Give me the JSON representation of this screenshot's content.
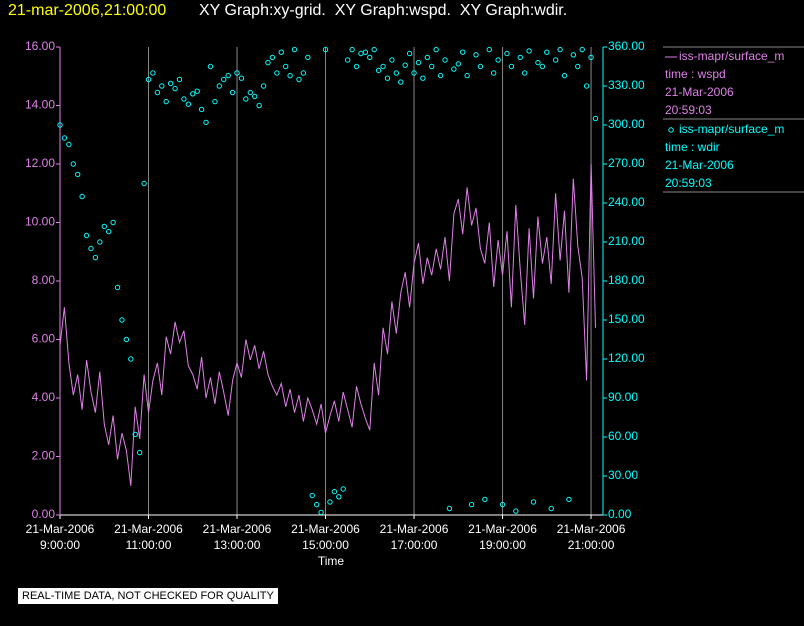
{
  "chart_data": {
    "type": "line-scatter",
    "title": "21-mar-2006,21:00:00",
    "subtitle": "XY Graph:xy-grid.  XY Graph:wspd.  XY Graph:wdir.",
    "xlabel": "Time",
    "note": "REAL-TIME DATA, NOT CHECKED FOR QUALITY",
    "xlim": [
      9,
      21.27
    ],
    "xticks": [
      {
        "value": 9,
        "label": "21-Mar-2006 9:00:00"
      },
      {
        "value": 11,
        "label": "21-Mar-2006 11:00:00"
      },
      {
        "value": 13,
        "label": "21-Mar-2006 13:00:00"
      },
      {
        "value": 15,
        "label": "21-Mar-2006 15:00:00"
      },
      {
        "value": 17,
        "label": "21-Mar-2006 17:00:00"
      },
      {
        "value": 19,
        "label": "21-Mar-2006 19:00:00"
      },
      {
        "value": 21,
        "label": "21-Mar-2006 21:00:00"
      }
    ],
    "ylim": [
      0,
      16
    ],
    "yticks": [
      {
        "value": 0,
        "label": "0.00"
      },
      {
        "value": 2,
        "label": "2.00"
      },
      {
        "value": 4,
        "label": "4.00"
      },
      {
        "value": 6,
        "label": "6.00"
      },
      {
        "value": 8,
        "label": "8.00"
      },
      {
        "value": 10,
        "label": "10.00"
      },
      {
        "value": 12,
        "label": "12.00"
      },
      {
        "value": 14,
        "label": "14.00"
      },
      {
        "value": 16,
        "label": "16.00"
      }
    ],
    "y2lim": [
      0,
      360
    ],
    "y2ticks": [
      {
        "value": 0,
        "label": "0.00"
      },
      {
        "value": 30,
        "label": "30.00"
      },
      {
        "value": 60,
        "label": "60.00"
      },
      {
        "value": 90,
        "label": "90.00"
      },
      {
        "value": 120,
        "label": "120.00"
      },
      {
        "value": 150,
        "label": "150.00"
      },
      {
        "value": 180,
        "label": "180.00"
      },
      {
        "value": 210,
        "label": "210.00"
      },
      {
        "value": 240,
        "label": "240.00"
      },
      {
        "value": 270,
        "label": "270.00"
      },
      {
        "value": 300,
        "label": "300.00"
      },
      {
        "value": 330,
        "label": "330.00"
      },
      {
        "value": 360,
        "label": "360.00"
      }
    ],
    "xgrid": true,
    "x": [
      9,
      9.1,
      9.2,
      9.3,
      9.4,
      9.5,
      9.6,
      9.7,
      9.8,
      9.9,
      10,
      10.1,
      10.2,
      10.3,
      10.4,
      10.5,
      10.6,
      10.7,
      10.8,
      10.9,
      11,
      11.1,
      11.2,
      11.3,
      11.4,
      11.5,
      11.6,
      11.7,
      11.8,
      11.9,
      12,
      12.1,
      12.2,
      12.3,
      12.4,
      12.5,
      12.6,
      12.7,
      12.8,
      12.9,
      13,
      13.1,
      13.2,
      13.3,
      13.4,
      13.5,
      13.6,
      13.7,
      13.8,
      13.9,
      14,
      14.1,
      14.2,
      14.3,
      14.4,
      14.5,
      14.6,
      14.7,
      14.8,
      14.9,
      15,
      15.1,
      15.2,
      15.3,
      15.4,
      15.5,
      15.6,
      15.7,
      15.8,
      15.9,
      16,
      16.1,
      16.2,
      16.3,
      16.4,
      16.5,
      16.6,
      16.7,
      16.8,
      16.9,
      17,
      17.1,
      17.2,
      17.3,
      17.4,
      17.5,
      17.6,
      17.7,
      17.8,
      17.9,
      18,
      18.1,
      18.2,
      18.3,
      18.4,
      18.5,
      18.6,
      18.7,
      18.8,
      18.9,
      19,
      19.1,
      19.2,
      19.3,
      19.4,
      19.5,
      19.6,
      19.7,
      19.8,
      19.9,
      20,
      20.1,
      20.2,
      20.3,
      20.4,
      20.5,
      20.6,
      20.7,
      20.8,
      20.9,
      21,
      21.1
    ],
    "series": [
      {
        "name": "iss-mapr/surface_m",
        "label": "time : wspd",
        "date": "21-Mar-2006",
        "time": "20:59:03",
        "color": "#e080e8",
        "style": "line",
        "axis": "y",
        "values": [
          5.8,
          7.1,
          5.2,
          4.1,
          4.8,
          3.6,
          5.3,
          4.2,
          3.5,
          4.9,
          3.1,
          2.4,
          3.4,
          1.9,
          2.8,
          2.2,
          1.0,
          3.7,
          2.6,
          4.8,
          3.5,
          4.6,
          5.2,
          4.1,
          6.1,
          5.5,
          6.6,
          5.9,
          6.3,
          5.1,
          4.8,
          4.3,
          5.4,
          4.0,
          4.7,
          3.8,
          4.9,
          4.2,
          3.4,
          4.6,
          5.2,
          4.7,
          6.0,
          5.3,
          5.8,
          5.0,
          5.6,
          4.8,
          4.4,
          4.1,
          4.5,
          3.7,
          4.3,
          3.5,
          4.1,
          3.2,
          4.0,
          3.6,
          3.1,
          3.8,
          2.8,
          3.4,
          3.9,
          3.2,
          4.2,
          3.6,
          3.0,
          4.4,
          3.8,
          3.3,
          2.9,
          5.2,
          4.1,
          6.4,
          5.5,
          7.3,
          6.2,
          7.6,
          8.3,
          7.1,
          8.6,
          9.3,
          7.9,
          8.8,
          8.2,
          9.1,
          8.4,
          9.5,
          8.0,
          10.3,
          10.8,
          9.6,
          11.2,
          9.9,
          10.5,
          9.1,
          8.6,
          10.0,
          7.8,
          9.4,
          8.2,
          9.7,
          7.1,
          10.6,
          8.4,
          6.5,
          9.8,
          7.4,
          10.2,
          8.6,
          9.5,
          7.9,
          11.0,
          8.7,
          10.4,
          7.6,
          11.5,
          9.2,
          8.1,
          4.6,
          12.0,
          6.4
        ]
      },
      {
        "name": "iss-mapr/surface_m",
        "label": "time : wdir",
        "date": "21-Mar-2006",
        "time": "20:59:03",
        "color": "#00ffff",
        "style": "scatter",
        "axis": "y2",
        "values": [
          300,
          290,
          285,
          270,
          262,
          245,
          215,
          205,
          198,
          210,
          222,
          218,
          225,
          175,
          150,
          135,
          120,
          62,
          48,
          255,
          335,
          340,
          325,
          330,
          318,
          332,
          328,
          335,
          320,
          316,
          324,
          326,
          312,
          302,
          345,
          318,
          330,
          335,
          338,
          325,
          340,
          336,
          320,
          325,
          322,
          315,
          330,
          348,
          352,
          340,
          356,
          345,
          338,
          358,
          335,
          340,
          352,
          15,
          8,
          2,
          358,
          10,
          18,
          14,
          20,
          350,
          358,
          345,
          355,
          356,
          352,
          358,
          342,
          345,
          336,
          350,
          340,
          333,
          346,
          355,
          340,
          348,
          336,
          352,
          345,
          358,
          338,
          350,
          5,
          343,
          347,
          356,
          338,
          8,
          354,
          345,
          12,
          358,
          340,
          350,
          8,
          355,
          345,
          3,
          352,
          340,
          357,
          10,
          348,
          345,
          356,
          5,
          350,
          358,
          338,
          12,
          354,
          345,
          358,
          330,
          352,
          305
        ]
      }
    ]
  }
}
